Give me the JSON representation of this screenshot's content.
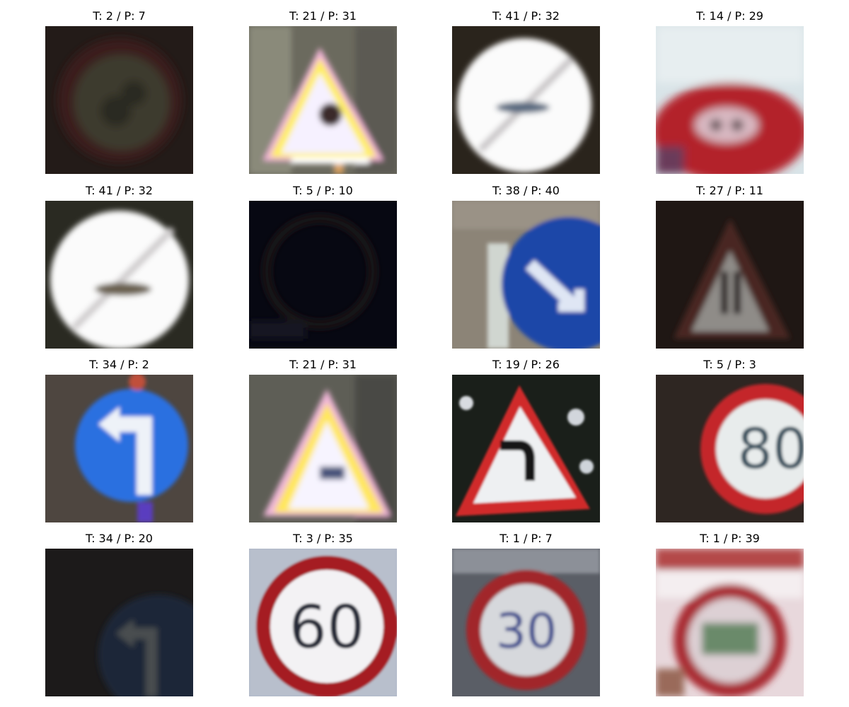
{
  "figure": {
    "panels": [
      {
        "title": "T: 2 / P: 7",
        "image": "dark-round-sign-image"
      },
      {
        "title": "T: 21 / P: 31",
        "image": "overexposed-warning-triangle-image"
      },
      {
        "title": "T: 41 / P: 32",
        "image": "white-end-of-restriction-sign-image"
      },
      {
        "title": "T: 14 / P: 29",
        "image": "blurry-red-sign-image"
      },
      {
        "title": "T: 41 / P: 32",
        "image": "white-end-of-restriction-sign-image"
      },
      {
        "title": "T: 5 / P: 10",
        "image": "very-dark-round-sign-image"
      },
      {
        "title": "T: 38 / P: 40",
        "image": "blue-keep-right-sign-image"
      },
      {
        "title": "T: 27 / P: 11",
        "image": "dark-pedestrian-triangle-image"
      },
      {
        "title": "T: 34 / P: 2",
        "image": "blue-turn-left-sign-image"
      },
      {
        "title": "T: 21 / P: 31",
        "image": "overexposed-warning-triangle-image"
      },
      {
        "title": "T: 19 / P: 26",
        "image": "curve-left-warning-sign-image"
      },
      {
        "title": "T: 5 / P: 3",
        "image": "speed-limit-80-sign-image",
        "sign_text": "80"
      },
      {
        "title": "T: 34 / P: 20",
        "image": "dark-turn-left-sign-image"
      },
      {
        "title": "T: 3 / P: 35",
        "image": "speed-limit-60-sign-image",
        "sign_text": "60"
      },
      {
        "title": "T: 1 / P: 7",
        "image": "speed-limit-30-sign-image",
        "sign_text": "30"
      },
      {
        "title": "T: 1 / P: 39",
        "image": "blurry-speed-limit-sign-image"
      }
    ]
  }
}
